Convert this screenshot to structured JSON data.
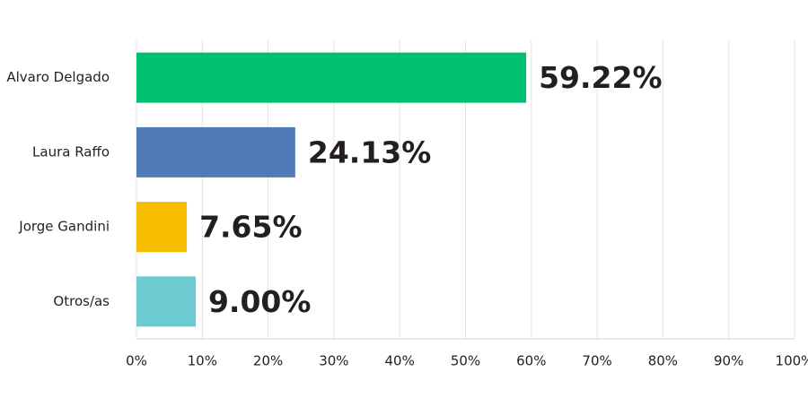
{
  "chart_data": {
    "type": "bar",
    "orientation": "horizontal",
    "categories": [
      "Alvaro Delgado",
      "Laura Raffo",
      "Jorge Gandini",
      "Otros/as"
    ],
    "values": [
      59.22,
      24.13,
      7.65,
      9.0
    ],
    "value_labels": [
      "59.22%",
      "24.13%",
      "7.65%",
      "9.00%"
    ],
    "colors": [
      "#00bf6f",
      "#507bb7",
      "#f6bd00",
      "#6ccbd0"
    ],
    "xlim": [
      0,
      100
    ],
    "xticks": [
      {
        "value": 0,
        "label": "0%"
      },
      {
        "value": 10,
        "label": "10%"
      },
      {
        "value": 20,
        "label": "20%"
      },
      {
        "value": 30,
        "label": "30%"
      },
      {
        "value": 40,
        "label": "40%"
      },
      {
        "value": 50,
        "label": "50%"
      },
      {
        "value": 60,
        "label": "60%"
      },
      {
        "value": 70,
        "label": "70%"
      },
      {
        "value": 80,
        "label": "80%"
      },
      {
        "value": 90,
        "label": "90%"
      },
      {
        "value": 100,
        "label": "100%"
      }
    ],
    "grid": true
  }
}
